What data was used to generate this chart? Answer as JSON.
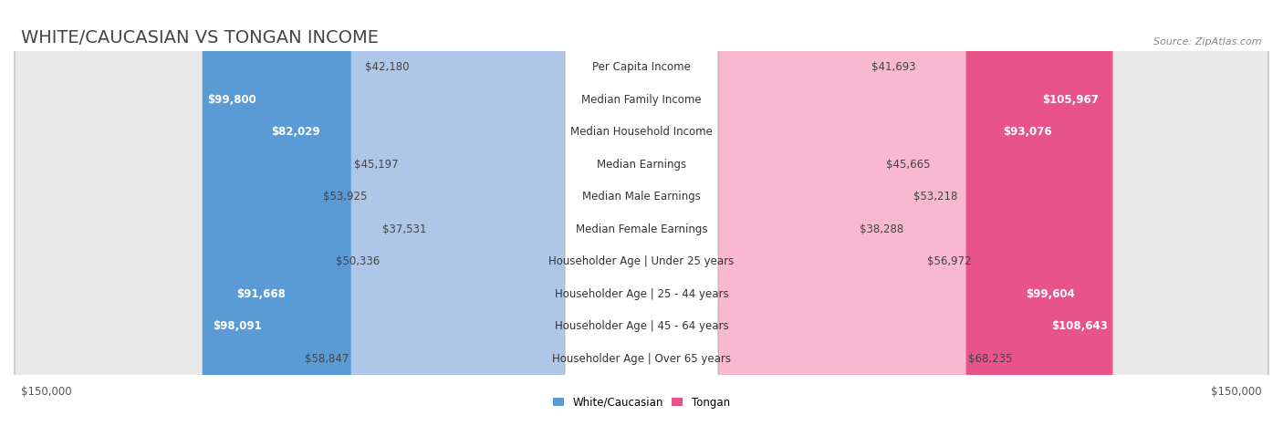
{
  "title": "WHITE/CAUCASIAN VS TONGAN INCOME",
  "source": "Source: ZipAtlas.com",
  "categories": [
    "Per Capita Income",
    "Median Family Income",
    "Median Household Income",
    "Median Earnings",
    "Median Male Earnings",
    "Median Female Earnings",
    "Householder Age | Under 25 years",
    "Householder Age | 25 - 44 years",
    "Householder Age | 45 - 64 years",
    "Householder Age | Over 65 years"
  ],
  "white_values": [
    42180,
    99800,
    82029,
    45197,
    53925,
    37531,
    50336,
    91668,
    98091,
    58847
  ],
  "tongan_values": [
    41693,
    105967,
    93076,
    45665,
    53218,
    38288,
    56972,
    99604,
    108643,
    68235
  ],
  "white_color_light": "#aec6e8",
  "white_color_dark": "#5b9bd5",
  "tongan_color_light": "#f7b8d0",
  "tongan_color_dark": "#e8538a",
  "white_label": "White/Caucasian",
  "tongan_label": "Tongan",
  "max_val": 150000,
  "title_fontsize": 14,
  "label_fontsize": 8.5,
  "value_fontsize": 8.5,
  "source_fontsize": 8,
  "white_text_threshold": 70000,
  "tongan_text_threshold": 70000,
  "fig_width": 14.06,
  "fig_height": 4.67,
  "dpi": 100
}
